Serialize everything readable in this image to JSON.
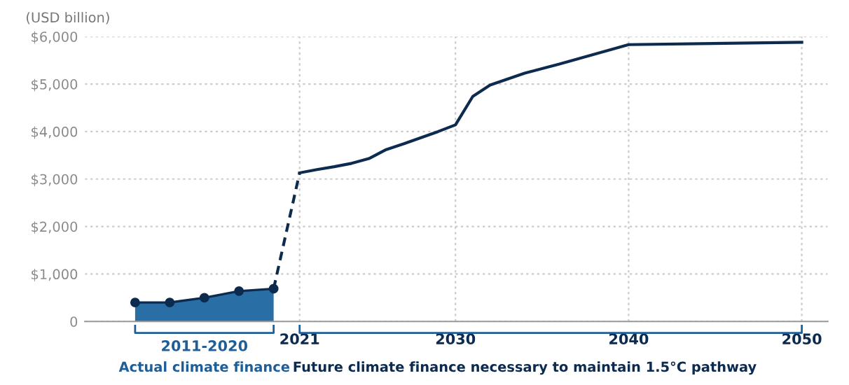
{
  "chart_data": {
    "type": "area",
    "ylabel": "(USD billion)",
    "series": [
      {
        "color": "#2a6ea6",
        "x": [
          2011.5,
          2013.5,
          2015.5,
          2017.5,
          2019.5
        ],
        "values": [
          400,
          400,
          500,
          640,
          690
        ],
        "marker": "circle"
      },
      {
        "type": "line",
        "color": "#0d2b4f",
        "x": [
          2019.5,
          2021
        ],
        "values": [
          690,
          3130
        ],
        "line_style": "dashed"
      },
      {
        "type": "line",
        "color": "#0d2b4f",
        "x": [
          2021,
          2022,
          2023,
          2024,
          2025,
          2026,
          2027,
          2028,
          2029,
          2030,
          2031,
          2032,
          2034,
          2036,
          2040,
          2050
        ],
        "values": [
          3130,
          3200,
          3260,
          3330,
          3430,
          3620,
          3740,
          3870,
          4000,
          4140,
          4740,
          4980,
          5230,
          5420,
          5830,
          5880
        ],
        "line_style": "solid"
      }
    ],
    "xlim": [
      2008.6,
      2051.5
    ],
    "xticks": [
      2021,
      2030,
      2040,
      2050
    ],
    "ylim": [
      0,
      6000
    ],
    "yticks": [
      0,
      {
        "value": 1000,
        "label": "$1,000"
      },
      {
        "value": 2000,
        "label": "$2,000"
      },
      {
        "value": 3000,
        "label": "$3,000"
      },
      {
        "value": 4000,
        "label": "$4,000"
      },
      {
        "value": 5000,
        "label": "$5,000"
      },
      {
        "value": 6000,
        "label": "$6,000"
      }
    ],
    "grid": true,
    "annotations": [
      "2011-2020",
      "Actual climate finance",
      "Future climate finance necessary to maintain 1.5°C pathway"
    ]
  }
}
